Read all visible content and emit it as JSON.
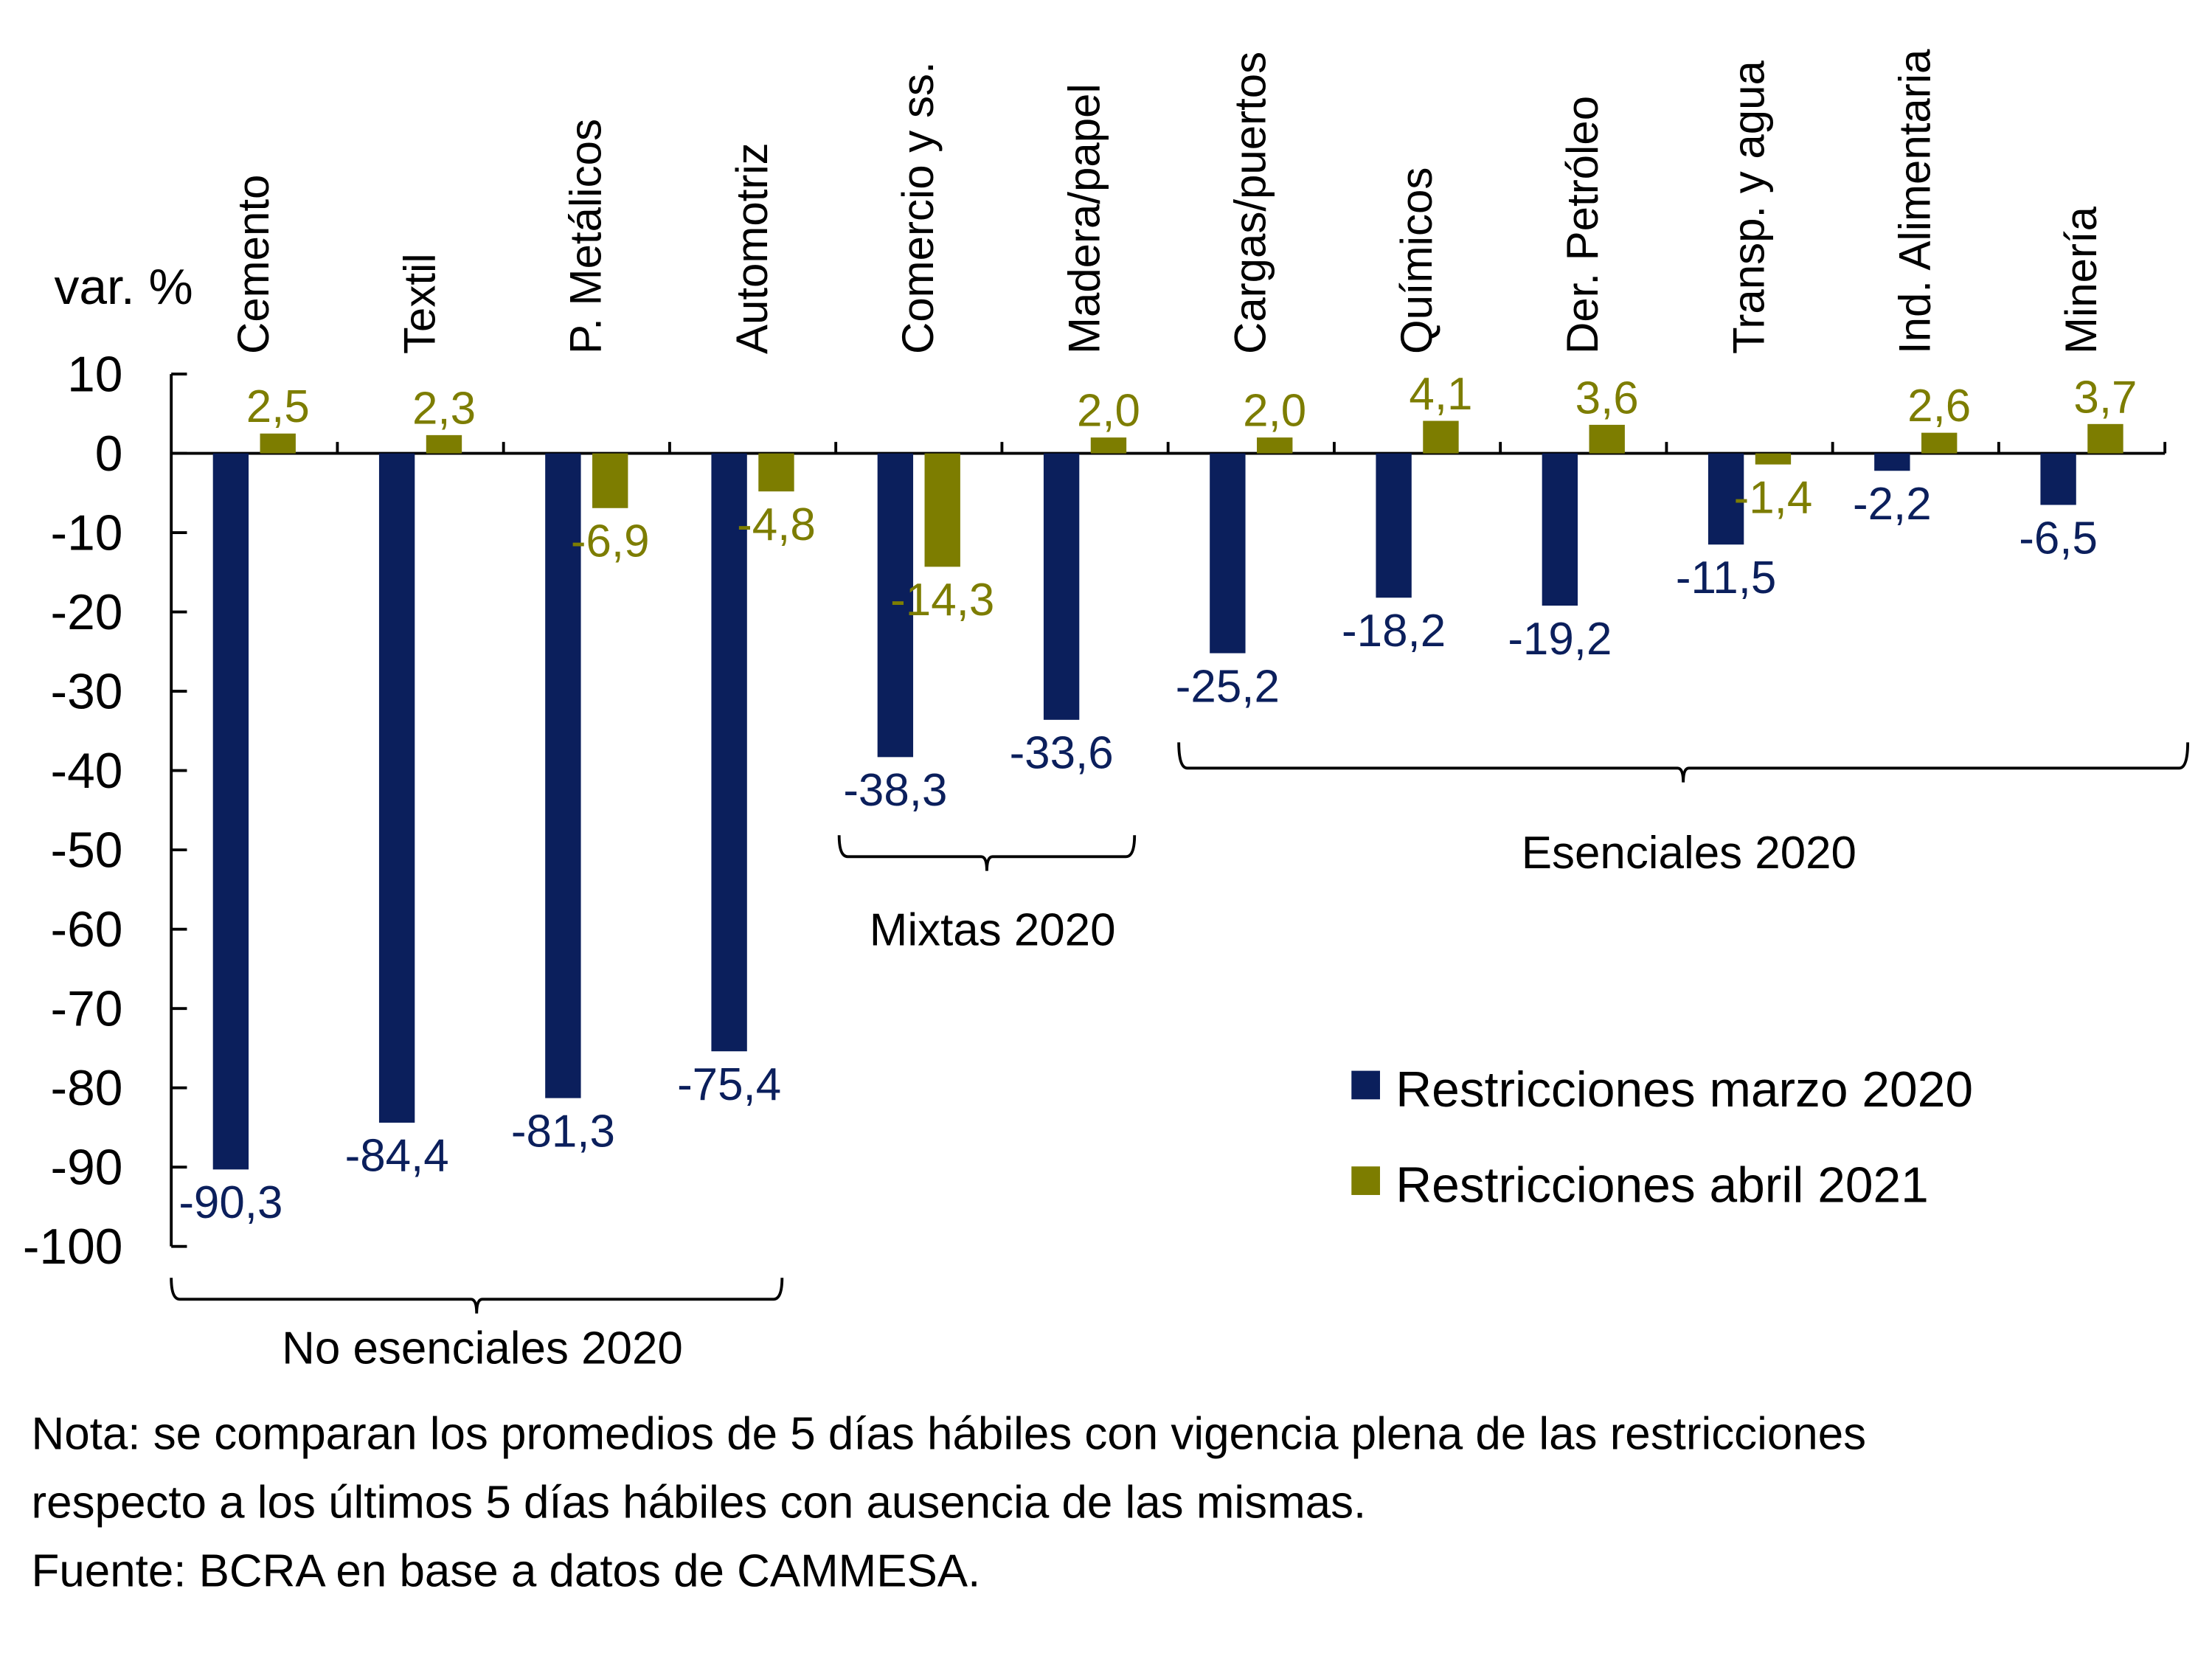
{
  "chart_data": {
    "type": "bar",
    "title": "",
    "ylabel": "var. %",
    "xlabel": "",
    "ylim": [
      -100,
      10
    ],
    "yticks": [
      10,
      0,
      -10,
      -20,
      -30,
      -40,
      -50,
      -60,
      -70,
      -80,
      -90,
      -100
    ],
    "grid": false,
    "categories": [
      "Cemento",
      "Textil",
      "P. Metálicos",
      "Automotriz",
      "Comercio y ss.",
      "Madera/papel",
      "Cargas/puertos",
      "Químicos",
      "Der. Petróleo",
      "Transp. y agua",
      "Ind. Alimentaria",
      "Minería"
    ],
    "series": [
      {
        "name": "Restricciones marzo 2020",
        "color": "#0b1f5c",
        "values": [
          -90.3,
          -84.4,
          -81.3,
          -75.4,
          -38.3,
          -33.6,
          -25.2,
          -18.2,
          -19.2,
          -11.5,
          -2.2,
          -6.5
        ],
        "labels": [
          "-90,3",
          "-84,4",
          "-81,3",
          "-75,4",
          "-38,3",
          "-33,6",
          "-25,2",
          "-18,2",
          "-19,2",
          "-11,5",
          "-2,2",
          "-6,5"
        ]
      },
      {
        "name": "Restricciones abril 2021",
        "color": "#7d7d00",
        "values": [
          2.5,
          2.3,
          -6.9,
          -4.8,
          -14.3,
          2.0,
          2.0,
          4.1,
          3.6,
          -1.4,
          2.6,
          3.7
        ],
        "labels": [
          "2,5",
          "2,3",
          "-6,9",
          "-4,8",
          "-14,3",
          "2,0",
          "2,0",
          "4,1",
          "3,6",
          "-1,4",
          "2,6",
          "3,7"
        ]
      }
    ],
    "groups": [
      {
        "label": "No esenciales 2020",
        "from": 0,
        "to": 3
      },
      {
        "label": "Mixtas 2020",
        "from": 4,
        "to": 5
      },
      {
        "label": "Esenciales 2020",
        "from": 6,
        "to": 11
      }
    ],
    "legend": {
      "position": "right-middle",
      "entries": [
        "Restricciones marzo 2020",
        "Restricciones abril 2021"
      ]
    }
  },
  "notes": [
    "Nota: se comparan los promedios de 5 días hábiles con vigencia plena de las restricciones",
    "respecto a los últimos 5 días hábiles con ausencia de las mismas.",
    "Fuente: BCRA en base a datos de CAMMESA."
  ]
}
